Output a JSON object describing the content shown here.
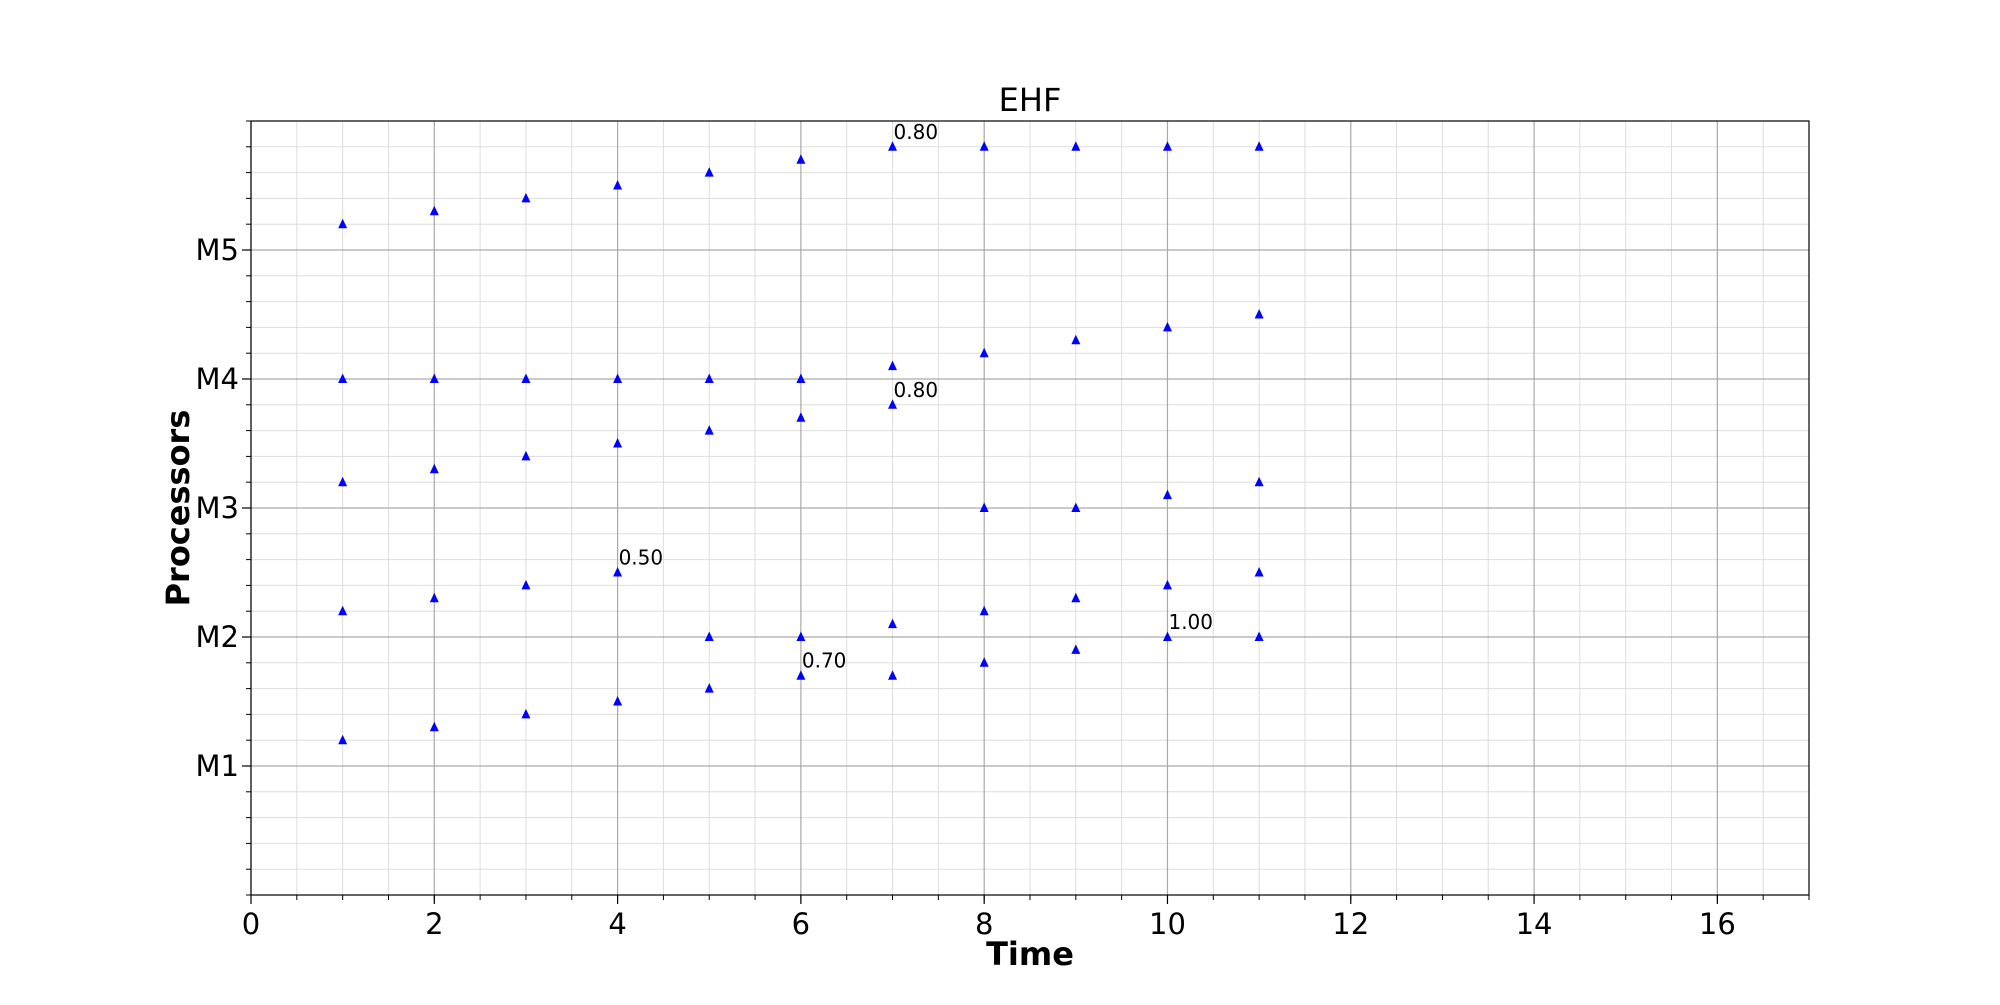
{
  "chart_data": {
    "type": "scatter",
    "title": "EHF",
    "xlabel": "Time",
    "ylabel": "Processors",
    "xlim": [
      0,
      17
    ],
    "ylim": [
      0,
      6
    ],
    "x_ticks": [
      0,
      2,
      4,
      6,
      8,
      10,
      12,
      14,
      16
    ],
    "x_tick_labels": [
      "0",
      "2",
      "4",
      "6",
      "8",
      "10",
      "12",
      "14",
      "16"
    ],
    "y_ticks": [
      1,
      2,
      3,
      4,
      5
    ],
    "y_tick_labels": [
      "M1",
      "M2",
      "M3",
      "M4",
      "M5"
    ],
    "grid": true,
    "minor_grid": true,
    "marker": "triangle-up",
    "series": [
      {
        "color": "#0000ff",
        "points": [
          [
            1,
            1.2
          ],
          [
            2,
            1.3
          ],
          [
            3,
            1.4
          ],
          [
            4,
            1.5
          ],
          [
            5,
            1.6
          ],
          [
            6,
            1.7
          ],
          [
            7,
            1.7
          ],
          [
            8,
            1.8
          ],
          [
            9,
            1.9
          ],
          [
            10,
            2.0
          ],
          [
            11,
            2.0
          ],
          [
            1,
            2.2
          ],
          [
            2,
            2.3
          ],
          [
            3,
            2.4
          ],
          [
            4,
            2.5
          ],
          [
            5,
            2.0
          ],
          [
            6,
            2.0
          ],
          [
            7,
            2.1
          ],
          [
            8,
            2.2
          ],
          [
            9,
            2.3
          ],
          [
            10,
            2.4
          ],
          [
            11,
            2.5
          ],
          [
            1,
            3.2
          ],
          [
            2,
            3.3
          ],
          [
            3,
            3.4
          ],
          [
            4,
            3.5
          ],
          [
            5,
            3.6
          ],
          [
            6,
            3.7
          ],
          [
            7,
            3.8
          ],
          [
            8,
            3.0
          ],
          [
            9,
            3.0
          ],
          [
            10,
            3.1
          ],
          [
            11,
            3.2
          ],
          [
            1,
            4.0
          ],
          [
            2,
            4.0
          ],
          [
            3,
            4.0
          ],
          [
            4,
            4.0
          ],
          [
            5,
            4.0
          ],
          [
            6,
            4.0
          ],
          [
            7,
            4.1
          ],
          [
            8,
            4.2
          ],
          [
            9,
            4.3
          ],
          [
            10,
            4.4
          ],
          [
            11,
            4.5
          ],
          [
            1,
            5.2
          ],
          [
            2,
            5.3
          ],
          [
            3,
            5.4
          ],
          [
            4,
            5.5
          ],
          [
            5,
            5.6
          ],
          [
            6,
            5.7
          ],
          [
            7,
            5.8
          ],
          [
            8,
            5.8
          ],
          [
            9,
            5.8
          ],
          [
            10,
            5.8
          ],
          [
            11,
            5.8
          ]
        ]
      }
    ],
    "annotations": [
      {
        "x": 4,
        "y": 2.5,
        "text": "0.50"
      },
      {
        "x": 6,
        "y": 1.7,
        "text": "0.70"
      },
      {
        "x": 7,
        "y": 3.8,
        "text": "0.80"
      },
      {
        "x": 7,
        "y": 5.8,
        "text": "0.80"
      },
      {
        "x": 10,
        "y": 2.0,
        "text": "1.00"
      }
    ]
  }
}
